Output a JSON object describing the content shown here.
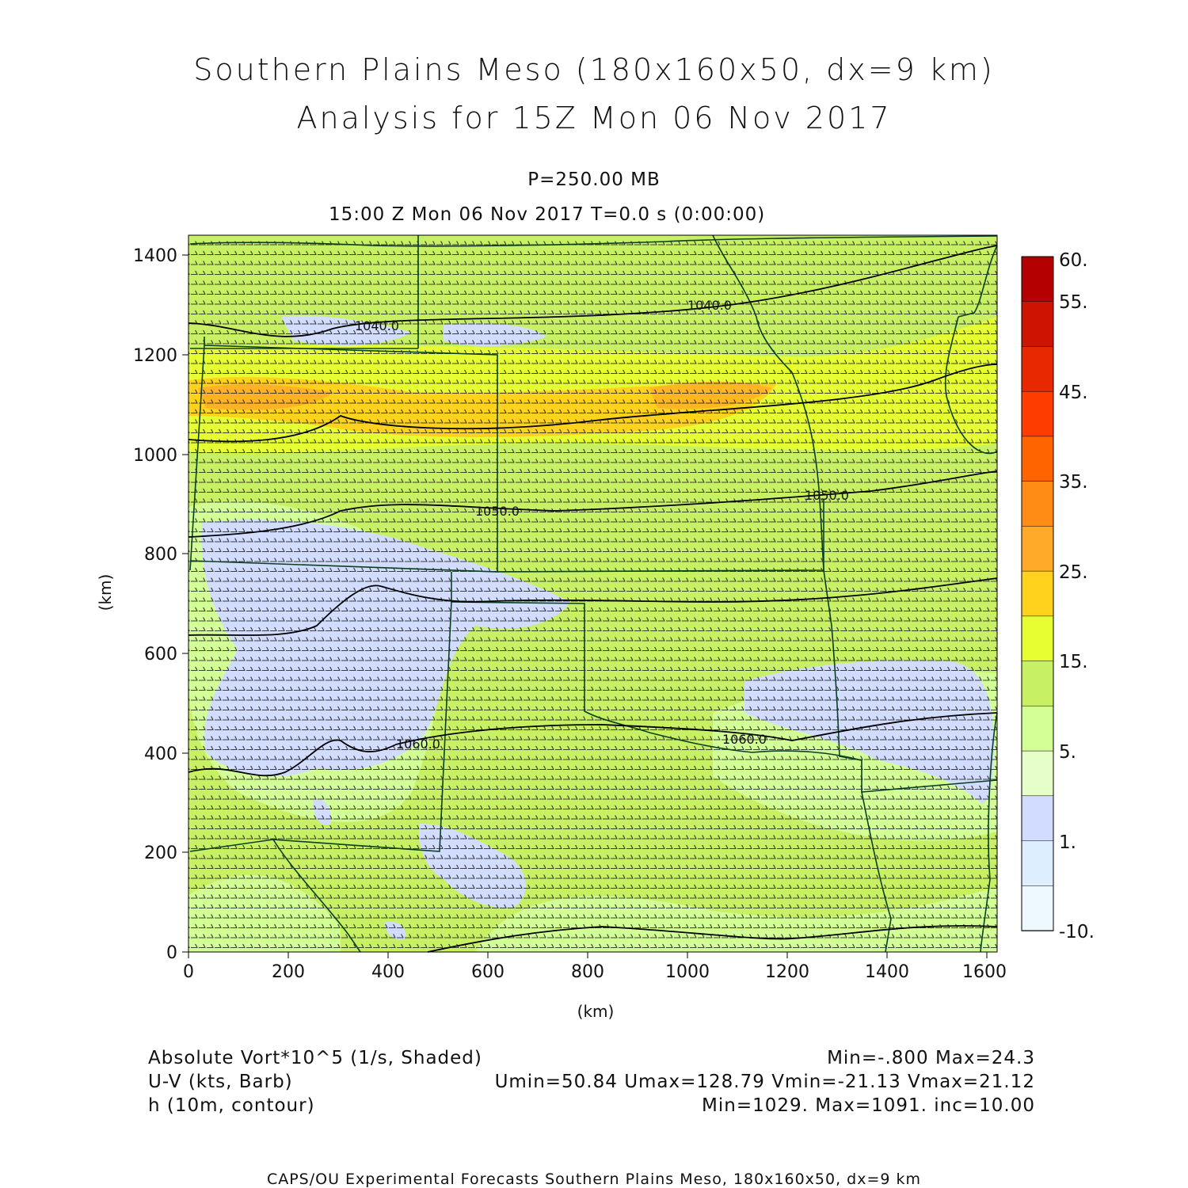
{
  "title": {
    "line1": "Southern Plains Meso (180x160x50, dx=9 km)",
    "line2": "Analysis for 15Z Mon 06 Nov 2017"
  },
  "subtitle": {
    "pressure": "P=250.00 MB",
    "time": "15:00 Z Mon 06 Nov 2017    T=0.0 s (0:00:00)"
  },
  "axes": {
    "xlabel": "(km)",
    "ylabel": "(km)",
    "xticks": [
      "0",
      "200",
      "400",
      "600",
      "800",
      "1000",
      "1200",
      "1400",
      "1600"
    ],
    "yticks": [
      "0",
      "200",
      "400",
      "600",
      "800",
      "1000",
      "1200",
      "1400"
    ]
  },
  "colorbar": {
    "labels": [
      "60.",
      "55.",
      "45.",
      "35.",
      "25.",
      "15.",
      "5.",
      "1.",
      "-10."
    ],
    "colors": [
      "#b40000",
      "#cc1400",
      "#e82800",
      "#ff3c00",
      "#ff6400",
      "#ff8c14",
      "#ffaa28",
      "#ffd21e",
      "#e6ff32",
      "#c8f064",
      "#d2ff96",
      "#e6ffc8",
      "#d2dcff",
      "#dceeff",
      "#eef8ff"
    ]
  },
  "contour_labels": [
    "1040.0",
    "1040.0",
    "1050.0",
    "1050.0",
    "1060.0",
    "1060.0"
  ],
  "legend": {
    "field1_name": "Absolute Vort*10^5 (1/s, Shaded)",
    "field1_stats": "Min=-.800 Max=24.3",
    "field2_name": "U-V (kts, Barb)",
    "field2_stats": "Umin=50.84 Umax=128.79 Vmin=-21.13 Vmax=21.12",
    "field3_name": "h (10m, contour)",
    "field3_stats": "Min=1029. Max=1091. inc=10.00"
  },
  "footer": "CAPS/OU Experimental Forecasts  Southern Plains Meso, 180x160x50, dx=9 km",
  "chart_data": {
    "type": "heatmap",
    "x_range_km": [
      0,
      1620
    ],
    "y_range_km": [
      0,
      1440
    ],
    "field": "Absolute Vorticity x10^5 (1/s)",
    "min": -0.8,
    "max": 24.3,
    "contour_field": "height (10 m)",
    "contour_min": 1029,
    "contour_max": 1091,
    "contour_inc": 10.0
  }
}
